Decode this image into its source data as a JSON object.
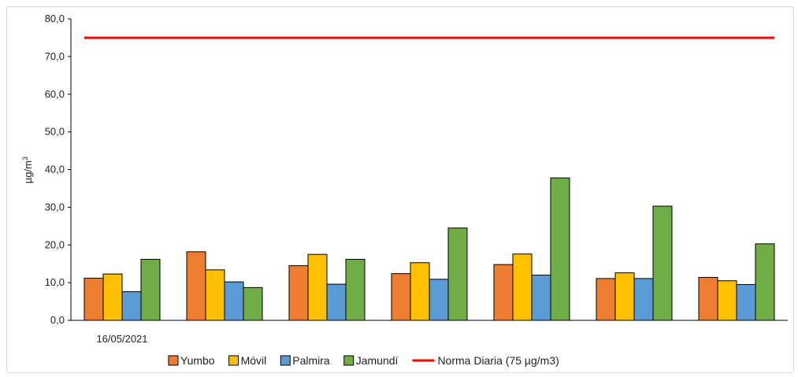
{
  "chart_data": {
    "type": "bar",
    "ylabel": "µg/m",
    "ylabel_superscript": "3",
    "ylim": [
      0,
      80
    ],
    "yticks": [
      "0,0",
      "10,0",
      "20,0",
      "30,0",
      "40,0",
      "50,0",
      "60,0",
      "70,0",
      "80,0"
    ],
    "x_tick_labels": [
      "16/05/2021",
      "",
      "",
      "",
      "",
      "",
      ""
    ],
    "grid": false,
    "legend_position": "bottom",
    "series": [
      {
        "name": "Yumbo",
        "color": "#ED7D31",
        "values": [
          11.2,
          18.2,
          14.5,
          12.4,
          14.8,
          11.1,
          11.4
        ]
      },
      {
        "name": "Móvil",
        "color": "#FFC000",
        "values": [
          12.3,
          13.4,
          17.5,
          15.3,
          17.6,
          12.6,
          10.5
        ]
      },
      {
        "name": "Palmira",
        "color": "#5B9BD5",
        "values": [
          7.6,
          10.2,
          9.6,
          10.9,
          12.0,
          11.1,
          9.5
        ]
      },
      {
        "name": "Jamundí",
        "color": "#70AD47",
        "values": [
          16.2,
          8.7,
          16.2,
          24.5,
          37.8,
          30.3,
          20.3
        ]
      }
    ],
    "reference_line": {
      "name": "Norma Diaria (75 µg/m3)",
      "value": 75,
      "color": "#FF0000"
    }
  }
}
